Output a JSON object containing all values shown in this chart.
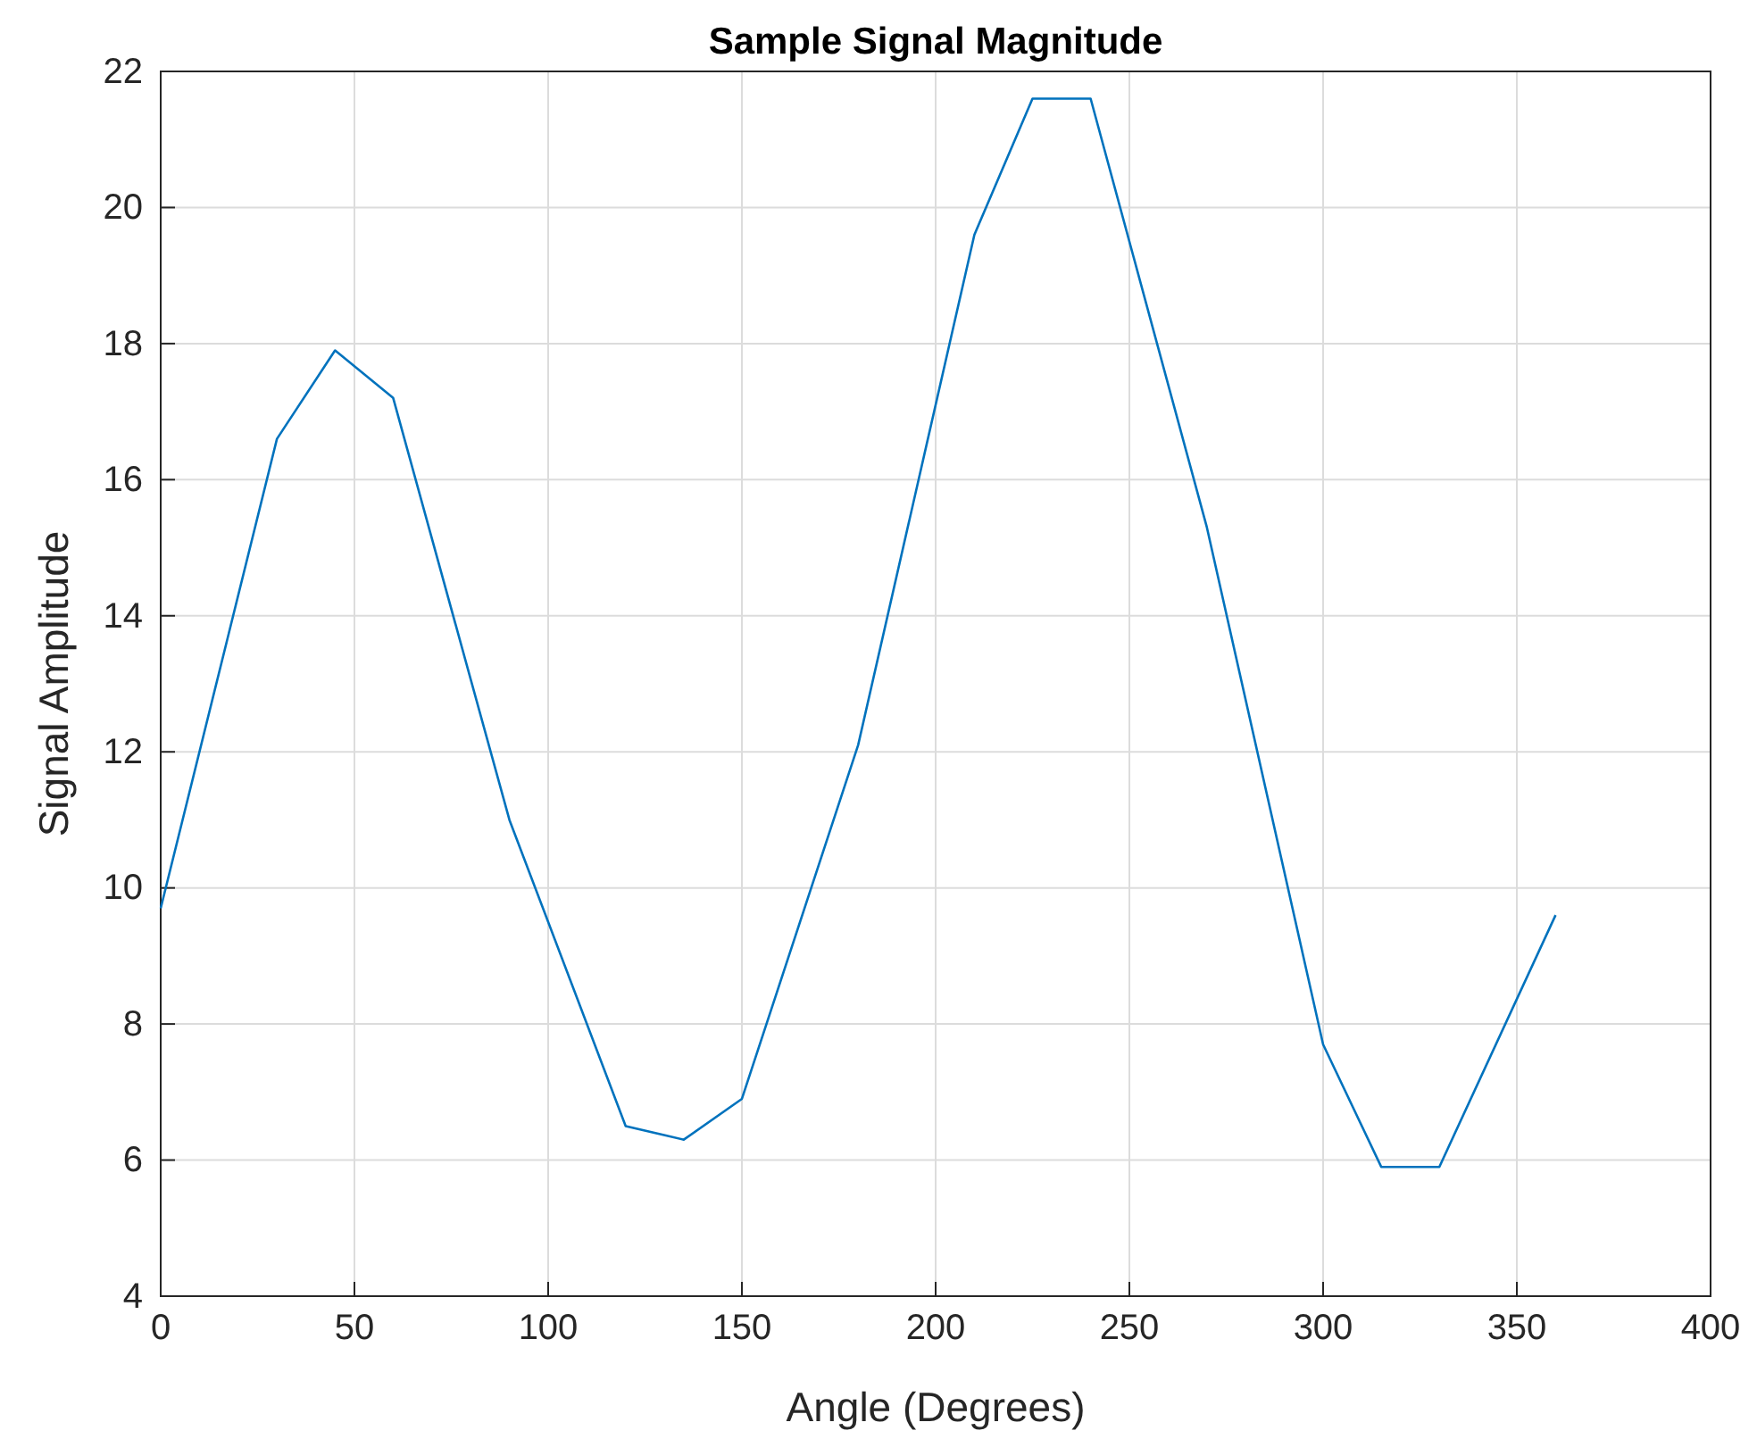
{
  "chart_data": {
    "type": "line",
    "title": "Sample Signal Magnitude",
    "xlabel": "Angle (Degrees)",
    "ylabel": "Signal Amplitude",
    "x": [
      0,
      30,
      45,
      60,
      90,
      120,
      135,
      150,
      180,
      210,
      225,
      240,
      270,
      300,
      315,
      330,
      360
    ],
    "series": [
      {
        "color": "#0072bd",
        "values": [
          9.7,
          16.6,
          17.9,
          17.2,
          11.0,
          6.5,
          6.3,
          6.9,
          12.1,
          19.6,
          21.6,
          21.6,
          15.3,
          7.7,
          5.9,
          5.9,
          9.6
        ]
      }
    ],
    "xlim": [
      0,
      400
    ],
    "xticks": [
      0,
      50,
      100,
      150,
      200,
      250,
      300,
      350,
      400
    ],
    "ylim": [
      4,
      22
    ],
    "yticks": [
      4,
      6,
      8,
      10,
      12,
      14,
      16,
      18,
      20,
      22
    ],
    "grid": true,
    "marker": "none",
    "line_style": "solid"
  }
}
